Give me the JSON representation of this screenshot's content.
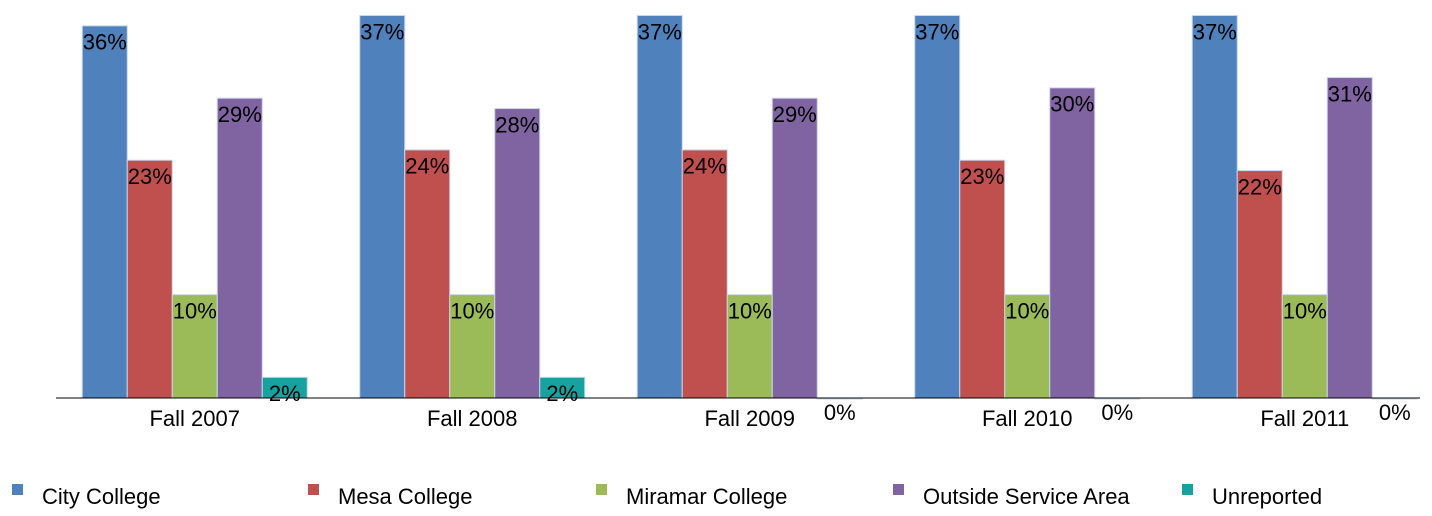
{
  "chart_data": {
    "type": "bar",
    "categories": [
      "Fall 2007",
      "Fall 2008",
      "Fall 2009",
      "Fall 2010",
      "Fall 2011"
    ],
    "series": [
      {
        "name": "City College",
        "color": "#4f81bd",
        "values": [
          36,
          37,
          37,
          37,
          37
        ],
        "value_labels": [
          "36%",
          "37%",
          "37%",
          "37%",
          "37%"
        ]
      },
      {
        "name": "Mesa College",
        "color": "#c0504d",
        "values": [
          23,
          24,
          24,
          23,
          22
        ],
        "value_labels": [
          "23%",
          "24%",
          "24%",
          "23%",
          "22%"
        ]
      },
      {
        "name": "Miramar College",
        "color": "#9bbb59",
        "values": [
          10,
          10,
          10,
          10,
          10
        ],
        "value_labels": [
          "10%",
          "10%",
          "10%",
          "10%",
          "10%"
        ]
      },
      {
        "name": "Outside Service Area",
        "color": "#8064a2",
        "values": [
          29,
          28,
          29,
          30,
          31
        ],
        "value_labels": [
          "29%",
          "28%",
          "29%",
          "30%",
          "31%"
        ]
      },
      {
        "name": "Unreported",
        "color": "#17a2a0",
        "values": [
          2,
          2,
          0,
          0,
          0
        ],
        "value_labels": [
          "2%",
          "2%",
          "0%",
          "0%",
          "0%"
        ]
      }
    ],
    "ylim": [
      0,
      38.5
    ],
    "legend": "bottom"
  }
}
